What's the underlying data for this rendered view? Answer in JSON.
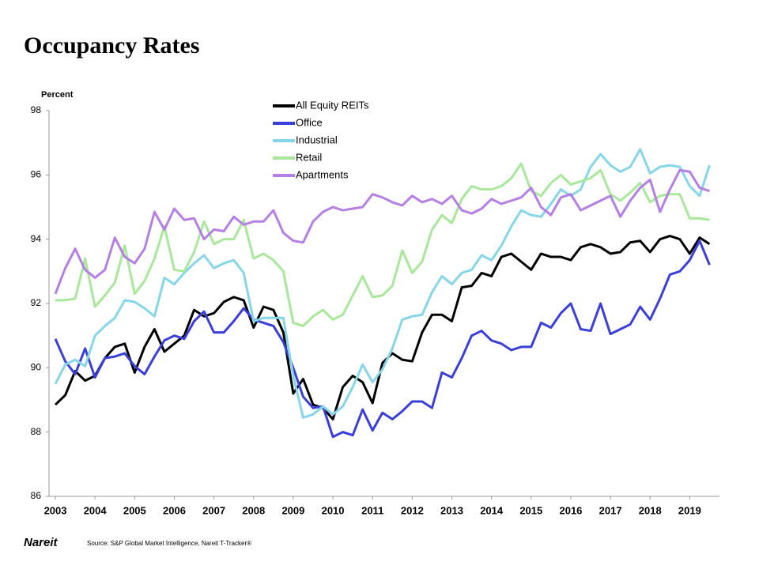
{
  "chart_data": {
    "type": "line",
    "title": "Occupancy Rates",
    "y_label": "Percent",
    "source": "Source: S&P Global Market Intelligence, Nareit T-Tracker®",
    "logo": "Nareit",
    "legend": "top-center",
    "x": [
      2003,
      2003.25,
      2003.5,
      2003.75,
      2004,
      2004.25,
      2004.5,
      2004.75,
      2005,
      2005.25,
      2005.5,
      2005.75,
      2006,
      2006.25,
      2006.5,
      2006.75,
      2007,
      2007.25,
      2007.5,
      2007.75,
      2008,
      2008.25,
      2008.5,
      2008.75,
      2009,
      2009.25,
      2009.5,
      2009.75,
      2010,
      2010.25,
      2010.5,
      2010.75,
      2011,
      2011.25,
      2011.5,
      2011.75,
      2012,
      2012.25,
      2012.5,
      2012.75,
      2013,
      2013.25,
      2013.5,
      2013.75,
      2014,
      2014.25,
      2014.5,
      2014.75,
      2015,
      2015.25,
      2015.5,
      2015.75,
      2016,
      2016.25,
      2016.5,
      2016.75,
      2017,
      2017.25,
      2017.5,
      2017.75,
      2018,
      2018.25,
      2018.5,
      2018.75,
      2019,
      2019.25,
      2019.5
    ],
    "xlim": [
      2002.84,
      2019.75
    ],
    "xticks": [
      2003,
      2004,
      2005,
      2006,
      2007,
      2008,
      2009,
      2010,
      2011,
      2012,
      2013,
      2014,
      2015,
      2016,
      2017,
      2018,
      2019
    ],
    "ylim": [
      86,
      98
    ],
    "yticks": [
      86,
      88,
      90,
      92,
      94,
      96,
      98
    ],
    "series": [
      {
        "name": "All Equity REITs",
        "color": "#000000",
        "values": [
          88.85,
          89.15,
          89.9,
          89.6,
          89.75,
          90.3,
          90.65,
          90.75,
          89.85,
          90.65,
          91.2,
          90.5,
          90.75,
          91.0,
          91.8,
          91.6,
          91.7,
          92.05,
          92.2,
          92.1,
          91.25,
          91.9,
          91.8,
          91.1,
          89.2,
          89.65,
          88.85,
          88.75,
          88.4,
          89.4,
          89.75,
          89.55,
          88.9,
          90.15,
          90.45,
          90.25,
          90.2,
          91.1,
          91.65,
          91.65,
          91.45,
          92.5,
          92.55,
          92.95,
          92.85,
          93.45,
          93.55,
          93.3,
          93.05,
          93.55,
          93.45,
          93.45,
          93.35,
          93.75,
          93.85,
          93.75,
          93.55,
          93.6,
          93.9,
          93.95,
          93.6,
          94.0,
          94.1,
          94.0,
          93.55,
          94.05,
          93.85
        ]
      },
      {
        "name": "Office",
        "color": "#3a3fd9",
        "values": [
          90.9,
          90.2,
          89.8,
          90.6,
          89.7,
          90.3,
          90.35,
          90.45,
          90.05,
          89.8,
          90.35,
          90.85,
          91.0,
          90.9,
          91.45,
          91.75,
          91.1,
          91.1,
          91.45,
          91.85,
          91.5,
          91.4,
          91.3,
          90.8,
          90.0,
          89.1,
          88.75,
          88.8,
          87.85,
          88.0,
          87.9,
          88.7,
          88.05,
          88.6,
          88.4,
          88.65,
          88.95,
          88.95,
          88.75,
          89.85,
          89.7,
          90.3,
          91.0,
          91.15,
          90.85,
          90.75,
          90.55,
          90.65,
          90.65,
          91.4,
          91.25,
          91.7,
          92.0,
          91.2,
          91.15,
          92.0,
          91.05,
          91.2,
          91.35,
          91.9,
          91.5,
          92.15,
          92.9,
          93.0,
          93.35,
          93.95,
          93.2
        ]
      },
      {
        "name": "Industrial",
        "color": "#86d6ea",
        "values": [
          89.5,
          90.1,
          90.25,
          90.05,
          91.0,
          91.3,
          91.55,
          92.1,
          92.05,
          91.85,
          91.6,
          92.8,
          92.6,
          92.95,
          93.25,
          93.5,
          93.1,
          93.25,
          93.35,
          92.95,
          91.45,
          91.55,
          91.55,
          91.55,
          89.75,
          88.45,
          88.55,
          88.8,
          88.55,
          88.8,
          89.4,
          90.1,
          89.55,
          89.95,
          90.6,
          91.5,
          91.6,
          91.65,
          92.35,
          92.85,
          92.6,
          92.95,
          93.05,
          93.5,
          93.35,
          93.8,
          94.4,
          94.9,
          94.75,
          94.7,
          95.1,
          95.55,
          95.35,
          95.55,
          96.25,
          96.65,
          96.3,
          96.1,
          96.25,
          96.8,
          96.05,
          96.25,
          96.3,
          96.25,
          95.65,
          95.35,
          96.3
        ]
      },
      {
        "name": "Retail",
        "color": "#a8e89a",
        "values": [
          92.1,
          92.1,
          92.15,
          93.4,
          91.9,
          92.25,
          92.65,
          93.8,
          92.3,
          92.7,
          93.4,
          94.4,
          93.05,
          93.0,
          93.6,
          94.55,
          93.85,
          94.0,
          94.0,
          94.6,
          93.4,
          93.55,
          93.35,
          93.0,
          91.4,
          91.3,
          91.6,
          91.8,
          91.5,
          91.65,
          92.25,
          92.85,
          92.2,
          92.25,
          92.55,
          93.65,
          92.95,
          93.3,
          94.3,
          94.75,
          94.5,
          95.25,
          95.65,
          95.55,
          95.55,
          95.65,
          95.9,
          96.35,
          95.5,
          95.35,
          95.75,
          96.0,
          95.7,
          95.8,
          95.9,
          96.15,
          95.4,
          95.2,
          95.45,
          95.75,
          95.15,
          95.35,
          95.4,
          95.4,
          94.65,
          94.65,
          94.6
        ]
      },
      {
        "name": "Apartments",
        "color": "#b57fe6",
        "values": [
          92.3,
          93.1,
          93.7,
          93.05,
          92.8,
          93.05,
          94.05,
          93.45,
          93.25,
          93.7,
          94.85,
          94.3,
          94.95,
          94.6,
          94.65,
          94.0,
          94.3,
          94.25,
          94.7,
          94.45,
          94.55,
          94.55,
          94.9,
          94.2,
          93.95,
          93.9,
          94.55,
          94.85,
          95.0,
          94.9,
          94.95,
          95.0,
          95.4,
          95.3,
          95.15,
          95.05,
          95.35,
          95.15,
          95.25,
          95.1,
          95.35,
          94.9,
          94.8,
          94.95,
          95.25,
          95.1,
          95.2,
          95.3,
          95.6,
          95.0,
          94.75,
          95.3,
          95.4,
          94.9,
          95.05,
          95.2,
          95.35,
          94.7,
          95.2,
          95.6,
          95.85,
          94.85,
          95.55,
          96.15,
          96.1,
          95.6,
          95.5
        ]
      }
    ]
  }
}
